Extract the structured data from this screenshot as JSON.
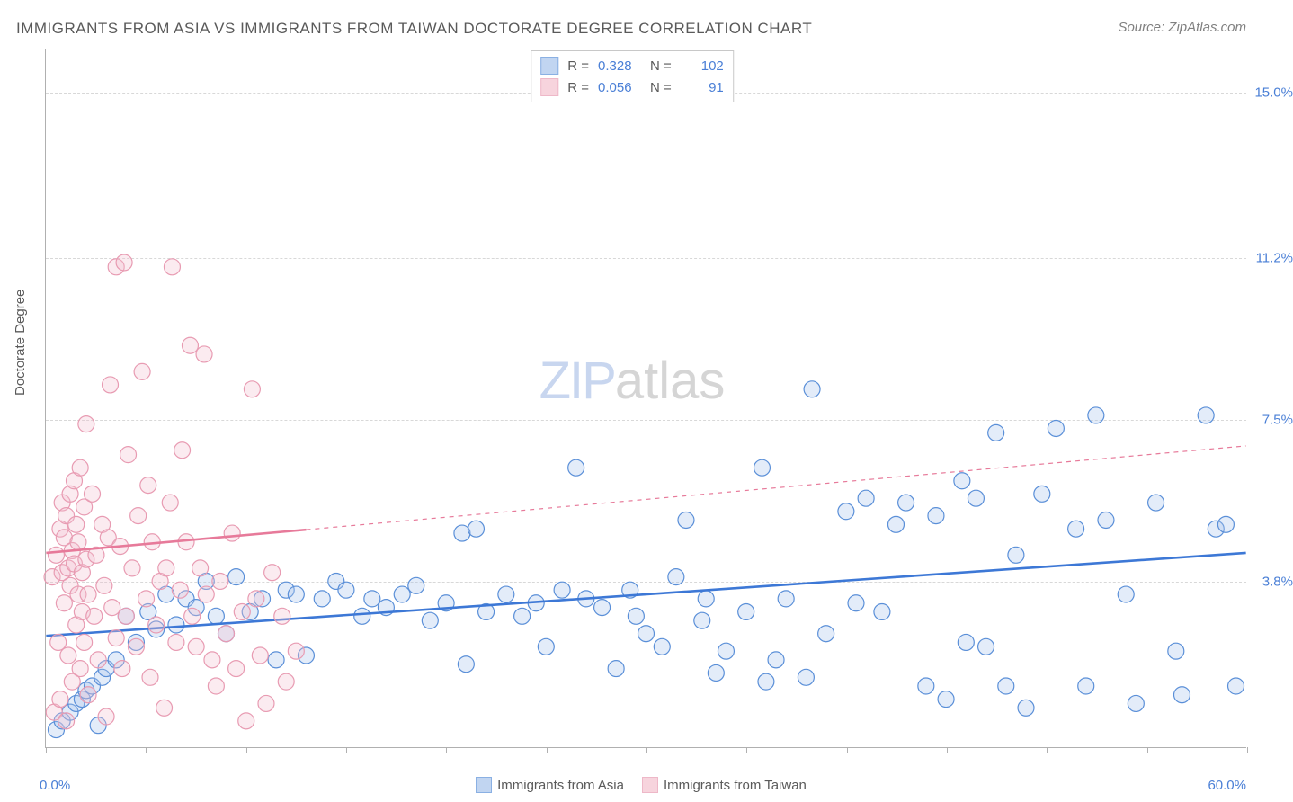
{
  "title": "IMMIGRANTS FROM ASIA VS IMMIGRANTS FROM TAIWAN DOCTORATE DEGREE CORRELATION CHART",
  "source": "Source: ZipAtlas.com",
  "ylabel": "Doctorate Degree",
  "watermark_part1": "ZIP",
  "watermark_part2": "atlas",
  "chart": {
    "type": "scatter-correlation",
    "background_color": "#ffffff",
    "grid_color": "#d8d8d8",
    "axis_color": "#b0b0b0",
    "tick_label_color": "#4a7fd6",
    "text_color": "#5a5a5a",
    "xlim": [
      0.0,
      60.0
    ],
    "ylim": [
      0.0,
      16.0
    ],
    "xticks": [
      0,
      5,
      10,
      15,
      20,
      25,
      30,
      35,
      40,
      45,
      50,
      55,
      60
    ],
    "ygrid": [
      {
        "value": 3.8,
        "label": "3.8%"
      },
      {
        "value": 7.5,
        "label": "7.5%"
      },
      {
        "value": 11.2,
        "label": "11.2%"
      },
      {
        "value": 15.0,
        "label": "15.0%"
      }
    ],
    "x_min_label": "0.0%",
    "x_max_label": "60.0%",
    "marker_radius": 9,
    "marker_stroke_width": 1.2,
    "marker_fill_opacity": 0.32,
    "trend_line_width": 2.6,
    "series": [
      {
        "name": "Immigrants from Asia",
        "color_stroke": "#5a8fd8",
        "color_fill": "#a7c4ec",
        "trend_color": "#3d78d6",
        "R": "0.328",
        "N": "102",
        "trend": {
          "x1": 0,
          "y1": 2.55,
          "x2": 60,
          "y2": 4.45
        },
        "trend_dash_from_x": null,
        "points": [
          [
            0.5,
            0.4
          ],
          [
            0.8,
            0.6
          ],
          [
            1.2,
            0.8
          ],
          [
            1.5,
            1.0
          ],
          [
            1.8,
            1.1
          ],
          [
            2.0,
            1.3
          ],
          [
            2.3,
            1.4
          ],
          [
            2.6,
            0.5
          ],
          [
            2.8,
            1.6
          ],
          [
            3.0,
            1.8
          ],
          [
            3.5,
            2.0
          ],
          [
            4.0,
            3.0
          ],
          [
            4.5,
            2.4
          ],
          [
            5.1,
            3.1
          ],
          [
            5.5,
            2.7
          ],
          [
            6.0,
            3.5
          ],
          [
            6.5,
            2.8
          ],
          [
            7.0,
            3.4
          ],
          [
            7.5,
            3.2
          ],
          [
            8.0,
            3.8
          ],
          [
            8.5,
            3.0
          ],
          [
            9.0,
            2.6
          ],
          [
            9.5,
            3.9
          ],
          [
            10.2,
            3.1
          ],
          [
            10.8,
            3.4
          ],
          [
            11.5,
            2.0
          ],
          [
            12.0,
            3.6
          ],
          [
            12.5,
            3.5
          ],
          [
            13.0,
            2.1
          ],
          [
            13.8,
            3.4
          ],
          [
            14.5,
            3.8
          ],
          [
            15.0,
            3.6
          ],
          [
            15.8,
            3.0
          ],
          [
            16.3,
            3.4
          ],
          [
            17.0,
            3.2
          ],
          [
            17.8,
            3.5
          ],
          [
            18.5,
            3.7
          ],
          [
            19.2,
            2.9
          ],
          [
            20.0,
            3.3
          ],
          [
            20.8,
            4.9
          ],
          [
            21.0,
            1.9
          ],
          [
            21.5,
            5.0
          ],
          [
            22.0,
            3.1
          ],
          [
            23.0,
            3.5
          ],
          [
            23.8,
            3.0
          ],
          [
            24.5,
            3.3
          ],
          [
            25.0,
            2.3
          ],
          [
            25.8,
            3.6
          ],
          [
            26.5,
            6.4
          ],
          [
            27.0,
            3.4
          ],
          [
            27.8,
            3.2
          ],
          [
            28.5,
            1.8
          ],
          [
            29.2,
            3.6
          ],
          [
            29.5,
            3.0
          ],
          [
            30.0,
            2.6
          ],
          [
            30.8,
            2.3
          ],
          [
            31.5,
            3.9
          ],
          [
            32.0,
            5.2
          ],
          [
            32.8,
            2.9
          ],
          [
            33.0,
            3.4
          ],
          [
            33.5,
            1.7
          ],
          [
            34.0,
            2.2
          ],
          [
            35.0,
            3.1
          ],
          [
            35.8,
            6.4
          ],
          [
            36.0,
            1.5
          ],
          [
            36.5,
            2.0
          ],
          [
            37.0,
            3.4
          ],
          [
            38.0,
            1.6
          ],
          [
            38.3,
            8.2
          ],
          [
            39.0,
            2.6
          ],
          [
            40.0,
            5.4
          ],
          [
            40.5,
            3.3
          ],
          [
            41.0,
            5.7
          ],
          [
            41.8,
            3.1
          ],
          [
            42.5,
            5.1
          ],
          [
            43.0,
            5.6
          ],
          [
            44.0,
            1.4
          ],
          [
            44.5,
            5.3
          ],
          [
            45.0,
            1.1
          ],
          [
            45.8,
            6.1
          ],
          [
            46.0,
            2.4
          ],
          [
            46.5,
            5.7
          ],
          [
            47.0,
            2.3
          ],
          [
            47.5,
            7.2
          ],
          [
            48.0,
            1.4
          ],
          [
            48.5,
            4.4
          ],
          [
            49.0,
            0.9
          ],
          [
            49.8,
            5.8
          ],
          [
            50.5,
            7.3
          ],
          [
            51.5,
            5.0
          ],
          [
            52.0,
            1.4
          ],
          [
            52.5,
            7.6
          ],
          [
            53.0,
            5.2
          ],
          [
            54.0,
            3.5
          ],
          [
            54.5,
            1.0
          ],
          [
            55.5,
            5.6
          ],
          [
            56.5,
            2.2
          ],
          [
            56.8,
            1.2
          ],
          [
            58.0,
            7.6
          ],
          [
            58.5,
            5.0
          ],
          [
            59.0,
            5.1
          ],
          [
            59.5,
            1.4
          ]
        ]
      },
      {
        "name": "Immigrants from Taiwan",
        "color_stroke": "#e89bb2",
        "color_fill": "#f4c2d0",
        "trend_color": "#e77a9a",
        "R": "0.056",
        "N": "91",
        "trend": {
          "x1": 0,
          "y1": 4.45,
          "x2": 60,
          "y2": 6.9
        },
        "trend_dash_from_x": 13,
        "points": [
          [
            0.3,
            3.9
          ],
          [
            0.4,
            0.8
          ],
          [
            0.5,
            4.4
          ],
          [
            0.6,
            2.4
          ],
          [
            0.7,
            5.0
          ],
          [
            0.7,
            1.1
          ],
          [
            0.8,
            4.0
          ],
          [
            0.8,
            5.6
          ],
          [
            0.9,
            3.3
          ],
          [
            0.9,
            4.8
          ],
          [
            1.0,
            0.6
          ],
          [
            1.0,
            5.3
          ],
          [
            1.1,
            4.1
          ],
          [
            1.1,
            2.1
          ],
          [
            1.2,
            5.8
          ],
          [
            1.2,
            3.7
          ],
          [
            1.3,
            4.5
          ],
          [
            1.3,
            1.5
          ],
          [
            1.4,
            6.1
          ],
          [
            1.4,
            4.2
          ],
          [
            1.5,
            2.8
          ],
          [
            1.5,
            5.1
          ],
          [
            1.6,
            3.5
          ],
          [
            1.6,
            4.7
          ],
          [
            1.7,
            1.8
          ],
          [
            1.7,
            6.4
          ],
          [
            1.8,
            4.0
          ],
          [
            1.8,
            3.1
          ],
          [
            1.9,
            5.5
          ],
          [
            1.9,
            2.4
          ],
          [
            2.0,
            4.3
          ],
          [
            2.0,
            7.4
          ],
          [
            2.1,
            3.5
          ],
          [
            2.1,
            1.2
          ],
          [
            2.3,
            5.8
          ],
          [
            2.4,
            3.0
          ],
          [
            2.5,
            4.4
          ],
          [
            2.6,
            2.0
          ],
          [
            2.8,
            5.1
          ],
          [
            2.9,
            3.7
          ],
          [
            3.0,
            0.7
          ],
          [
            3.1,
            4.8
          ],
          [
            3.2,
            8.3
          ],
          [
            3.3,
            3.2
          ],
          [
            3.5,
            11.0
          ],
          [
            3.5,
            2.5
          ],
          [
            3.7,
            4.6
          ],
          [
            3.8,
            1.8
          ],
          [
            3.9,
            11.1
          ],
          [
            4.0,
            3.0
          ],
          [
            4.1,
            6.7
          ],
          [
            4.3,
            4.1
          ],
          [
            4.5,
            2.3
          ],
          [
            4.6,
            5.3
          ],
          [
            4.8,
            8.6
          ],
          [
            5.0,
            3.4
          ],
          [
            5.1,
            6.0
          ],
          [
            5.2,
            1.6
          ],
          [
            5.3,
            4.7
          ],
          [
            5.5,
            2.8
          ],
          [
            5.7,
            3.8
          ],
          [
            5.9,
            0.9
          ],
          [
            6.0,
            4.1
          ],
          [
            6.2,
            5.6
          ],
          [
            6.3,
            11.0
          ],
          [
            6.5,
            2.4
          ],
          [
            6.7,
            3.6
          ],
          [
            6.8,
            6.8
          ],
          [
            7.0,
            4.7
          ],
          [
            7.2,
            9.2
          ],
          [
            7.3,
            3.0
          ],
          [
            7.5,
            2.3
          ],
          [
            7.7,
            4.1
          ],
          [
            7.9,
            9.0
          ],
          [
            8.0,
            3.5
          ],
          [
            8.3,
            2.0
          ],
          [
            8.5,
            1.4
          ],
          [
            8.7,
            3.8
          ],
          [
            9.0,
            2.6
          ],
          [
            9.3,
            4.9
          ],
          [
            9.5,
            1.8
          ],
          [
            9.8,
            3.1
          ],
          [
            10.0,
            0.6
          ],
          [
            10.3,
            8.2
          ],
          [
            10.5,
            3.4
          ],
          [
            10.7,
            2.1
          ],
          [
            11.0,
            1.0
          ],
          [
            11.3,
            4.0
          ],
          [
            11.8,
            3.0
          ],
          [
            12.0,
            1.5
          ],
          [
            12.5,
            2.2
          ]
        ]
      }
    ]
  }
}
